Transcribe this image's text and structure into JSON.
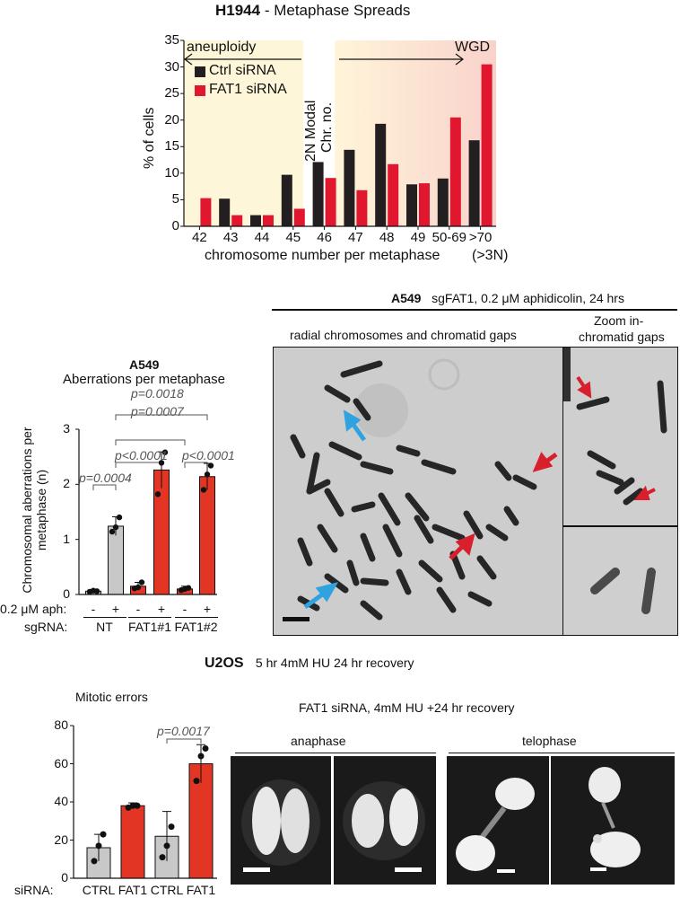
{
  "panel_top": {
    "title_bold": "H1944",
    "title_rest": " - Metaphase Spreads",
    "region_left_label": "aneuploidy",
    "region_right_label": "WGD",
    "modal_label_line1": "2N Modal",
    "modal_label_line2": "Chr. no.",
    "legend": [
      "Ctrl siRNA",
      "FAT1 siRNA"
    ],
    "extra_label": "(>3N)"
  },
  "panel_mid_left": {
    "title": "A549",
    "subtitle": "Aberrations per metaphase",
    "pvalues": [
      "p=0.0004",
      "p<0.0001",
      "p=0.0007",
      "p<0.0001",
      "p=0.0018"
    ],
    "row_aph_label": "0.2 μM aph:",
    "row_aph_values": [
      "-",
      "+",
      "-",
      "+",
      "-",
      "+"
    ],
    "row_sg_label": "sgRNA:",
    "row_sg_values": [
      "NT",
      "FAT1#1",
      "FAT1#2"
    ]
  },
  "panel_mid_right": {
    "header_bold": "A549",
    "header_rest": "sgFAT1, 0.2 μM aphidicolin, 24 hrs",
    "left_label": "radial chromosomes and chromatid gaps",
    "right_label_line1": "Zoom in-",
    "right_label_line2": "chromatid gaps"
  },
  "panel_bottom": {
    "title_bold": "U2OS",
    "title_rest": "5 hr 4mM HU 24 hr recovery",
    "chart_title": "Mitotic errors",
    "pvalue": "p=0.0017",
    "row_label": "siRNA:",
    "row_values": [
      "CTRL",
      "FAT1",
      "CTRL",
      "FAT1"
    ],
    "images_header": "FAT1 siRNA, 4mM HU +24 hr recovery",
    "anaphase_label": "anaphase",
    "telophase_label": "telophase"
  },
  "colors": {
    "ctrl": "#231f20",
    "fat1": "#e0172f",
    "grey": "#c8c8c8",
    "red_bar": "#e33524",
    "arrow_blue": "#2ea3e0",
    "arrow_red": "#d8202c"
  },
  "chart_data": [
    {
      "type": "bar",
      "categories": [
        "42",
        "43",
        "44",
        "45",
        "46",
        "47",
        "48",
        "49",
        "50-69",
        ">70"
      ],
      "series": [
        {
          "name": "Ctrl siRNA",
          "values": [
            0,
            5.2,
            2.1,
            9.7,
            12.1,
            14.4,
            19.3,
            7.9,
            9.0,
            16.2
          ]
        },
        {
          "name": "FAT1 siRNA",
          "values": [
            5.3,
            2.1,
            2.1,
            3.3,
            9.1,
            6.8,
            11.7,
            8.1,
            20.5,
            30.5
          ]
        }
      ],
      "ylabel": "% of cells",
      "xlabel": "chromosome number per metaphase",
      "ylim": [
        0,
        35
      ],
      "yticks": [
        0,
        5,
        10,
        15,
        20,
        25,
        30,
        35
      ]
    },
    {
      "type": "bar",
      "categories": [
        "-",
        "+",
        "-",
        "+",
        "-",
        "+"
      ],
      "values": [
        0.06,
        1.24,
        0.15,
        2.26,
        0.1,
        2.14
      ],
      "errors": [
        0.03,
        0.17,
        0.07,
        0.33,
        0.05,
        0.24
      ],
      "points": [
        [
          0.05,
          0.07,
          0.06
        ],
        [
          1.14,
          1.22,
          1.4
        ],
        [
          0.11,
          0.13,
          0.22
        ],
        [
          1.82,
          2.39,
          2.58
        ],
        [
          0.08,
          0.1,
          0.12
        ],
        [
          1.9,
          2.18,
          2.34
        ]
      ],
      "ylabel": "Chromosomal aberrations per metaphase (n)",
      "ylim": [
        0,
        3
      ],
      "yticks": [
        0,
        1,
        2,
        3
      ]
    },
    {
      "type": "bar",
      "categories": [
        "CTRL",
        "FAT1",
        "CTRL",
        "FAT1"
      ],
      "values": [
        16,
        38,
        22,
        60
      ],
      "errors": [
        7,
        1.5,
        13,
        10
      ],
      "points": [
        [
          9,
          17,
          23
        ],
        [
          37,
          38,
          38
        ],
        [
          11,
          17,
          27
        ],
        [
          51,
          64,
          68
        ]
      ],
      "ylim": [
        0,
        80
      ],
      "yticks": [
        0,
        20,
        40,
        60,
        80
      ]
    }
  ]
}
